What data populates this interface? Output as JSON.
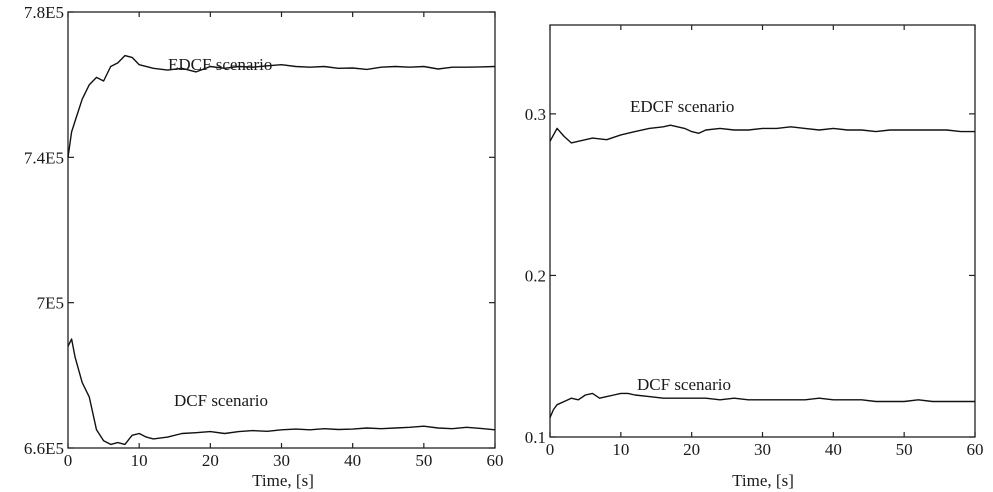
{
  "chart_data": [
    {
      "type": "line",
      "xlabel": "Time, [s]",
      "ylabel": "",
      "xlim": [
        0,
        60
      ],
      "ylim": [
        660000,
        780000
      ],
      "xticks": [
        0,
        10,
        20,
        30,
        40,
        50,
        60
      ],
      "xtick_labels": [
        "0",
        "10",
        "20",
        "30",
        "40",
        "50",
        "60"
      ],
      "yticks": [
        660000,
        700000,
        740000,
        780000
      ],
      "ytick_labels": [
        "6.6E5",
        "7E5",
        "7.4E5",
        "7.8E5"
      ],
      "grid": false,
      "series": [
        {
          "name": "EDCF scenario",
          "x": [
            0,
            0.5,
            1,
            2,
            3,
            4,
            5,
            6,
            7,
            8,
            9,
            10,
            12,
            14,
            16,
            18,
            20,
            22,
            24,
            26,
            28,
            30,
            32,
            34,
            36,
            38,
            40,
            42,
            44,
            46,
            48,
            50,
            52,
            54,
            56,
            58,
            60
          ],
          "y": [
            740000,
            747000,
            750000,
            756000,
            760000,
            762000,
            761000,
            765000,
            766000,
            768000,
            767500,
            765500,
            764500,
            764000,
            764500,
            763500,
            765000,
            764500,
            765000,
            764800,
            765200,
            765500,
            765000,
            764800,
            765000,
            764500,
            764600,
            764200,
            764800,
            765000,
            764800,
            765000,
            764300,
            764800,
            764800,
            764900,
            765000
          ]
        },
        {
          "name": "DCF scenario",
          "x": [
            0,
            0.5,
            1,
            2,
            3,
            4,
            5,
            6,
            7,
            8,
            9,
            10,
            11,
            12,
            14,
            16,
            18,
            20,
            22,
            24,
            26,
            28,
            30,
            32,
            34,
            36,
            38,
            40,
            42,
            44,
            46,
            48,
            50,
            52,
            54,
            56,
            58,
            60
          ],
          "y": [
            688000,
            690000,
            685000,
            678000,
            674000,
            665000,
            662000,
            661000,
            661500,
            661000,
            663500,
            664000,
            663000,
            662500,
            663000,
            664000,
            664200,
            664500,
            664000,
            664500,
            664800,
            664600,
            665000,
            665200,
            665000,
            665300,
            665100,
            665200,
            665500,
            665300,
            665500,
            665700,
            666000,
            665500,
            665300,
            665700,
            665400,
            665000
          ]
        }
      ],
      "annotations": [
        "EDCF scenario",
        "DCF scenario"
      ]
    },
    {
      "type": "line",
      "xlabel": "Time, [s]",
      "ylabel": "",
      "xlim": [
        0,
        60
      ],
      "ylim": [
        0.1,
        0.355
      ],
      "xticks": [
        0,
        10,
        20,
        30,
        40,
        50,
        60
      ],
      "xtick_labels": [
        "0",
        "10",
        "20",
        "30",
        "40",
        "50",
        "60"
      ],
      "yticks": [
        0.1,
        0.2,
        0.3
      ],
      "ytick_labels": [
        "0.1",
        "0.2",
        "0.3"
      ],
      "grid": false,
      "series": [
        {
          "name": "EDCF scenario",
          "x": [
            0,
            1,
            2,
            3,
            4,
            6,
            8,
            10,
            12,
            14,
            16,
            17,
            18,
            19,
            20,
            21,
            22,
            24,
            26,
            28,
            30,
            32,
            34,
            36,
            38,
            40,
            42,
            44,
            46,
            48,
            50,
            52,
            54,
            56,
            58,
            60
          ],
          "y": [
            0.283,
            0.291,
            0.286,
            0.282,
            0.283,
            0.285,
            0.284,
            0.287,
            0.289,
            0.291,
            0.292,
            0.293,
            0.292,
            0.291,
            0.289,
            0.288,
            0.29,
            0.291,
            0.29,
            0.29,
            0.291,
            0.291,
            0.292,
            0.291,
            0.29,
            0.291,
            0.29,
            0.29,
            0.289,
            0.29,
            0.29,
            0.29,
            0.29,
            0.29,
            0.289,
            0.289
          ]
        },
        {
          "name": "DCF scenario",
          "x": [
            0,
            0.5,
            1,
            2,
            3,
            4,
            5,
            6,
            7,
            8,
            9,
            10,
            11,
            12,
            14,
            16,
            18,
            20,
            22,
            24,
            26,
            28,
            30,
            32,
            34,
            36,
            38,
            40,
            42,
            44,
            46,
            48,
            50,
            52,
            54,
            56,
            58,
            60
          ],
          "y": [
            0.112,
            0.117,
            0.12,
            0.122,
            0.124,
            0.123,
            0.126,
            0.127,
            0.124,
            0.125,
            0.126,
            0.127,
            0.127,
            0.126,
            0.125,
            0.124,
            0.124,
            0.124,
            0.124,
            0.123,
            0.124,
            0.123,
            0.123,
            0.123,
            0.123,
            0.123,
            0.124,
            0.123,
            0.123,
            0.123,
            0.122,
            0.122,
            0.122,
            0.123,
            0.122,
            0.122,
            0.122,
            0.122
          ]
        }
      ],
      "annotations": [
        "EDCF scenario",
        "DCF scenario"
      ]
    }
  ]
}
